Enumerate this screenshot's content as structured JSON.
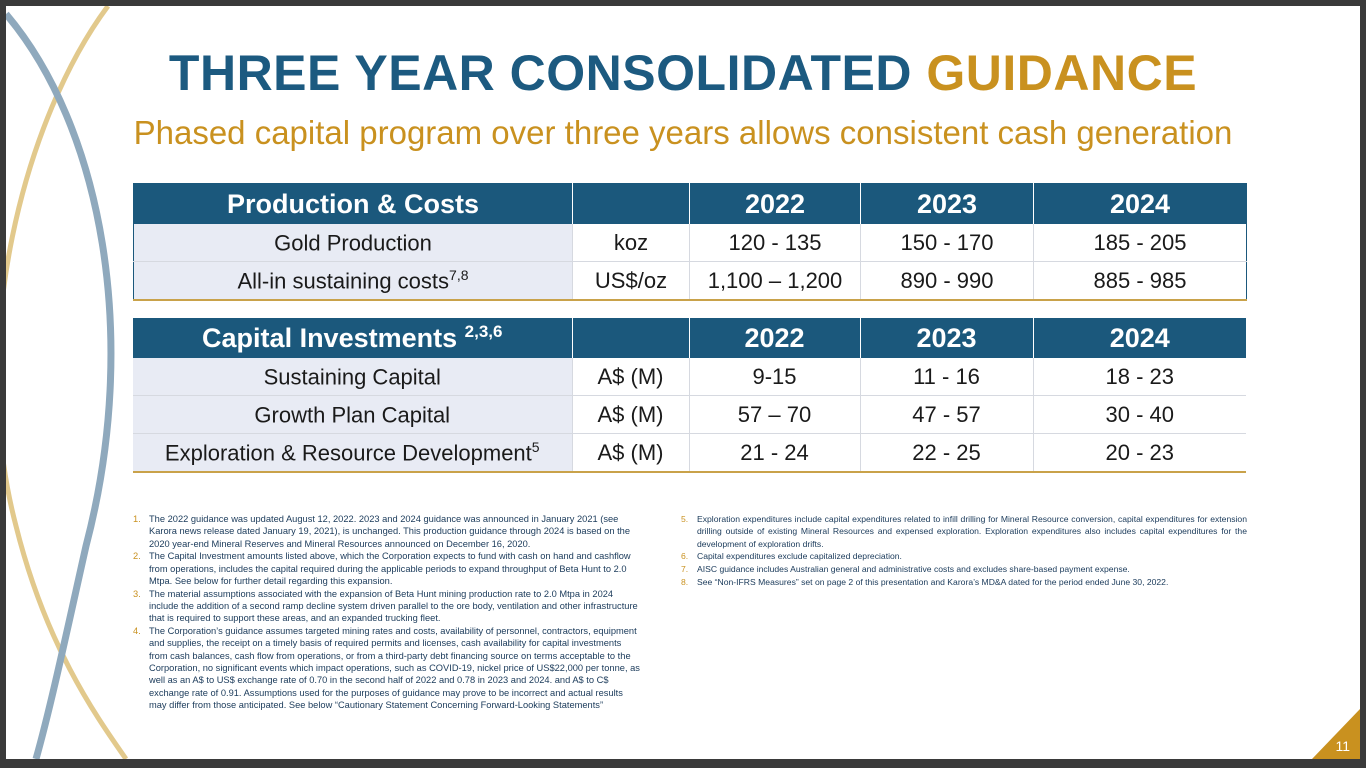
{
  "title": {
    "main": "THREE YEAR CONSOLIDATED",
    "accent": "GUIDANCE"
  },
  "subtitle": "Phased capital program over three years allows consistent cash generation",
  "colors": {
    "navy": "#1b587c",
    "gold": "#c9911f",
    "row_shade": "#e8ebf4"
  },
  "production_table": {
    "header": {
      "label": "Production & Costs",
      "unit": "",
      "years": [
        "2022",
        "2023",
        "2024"
      ]
    },
    "rows": [
      {
        "label": "Gold Production",
        "sup": "",
        "unit": "koz",
        "values": [
          "120 - 135",
          "150 - 170",
          "185 - 205"
        ]
      },
      {
        "label": "All-in sustaining costs",
        "sup": "7,8",
        "unit": "US$/oz",
        "values": [
          "1,100 – 1,200",
          "890 - 990",
          "885 - 985"
        ]
      }
    ]
  },
  "capital_table": {
    "header": {
      "label": "Capital Investments",
      "sup": "2,3,6",
      "unit": "",
      "years": [
        "2022",
        "2023",
        "2024"
      ]
    },
    "rows": [
      {
        "label": "Sustaining Capital",
        "sup": "",
        "unit": "A$ (M)",
        "values": [
          "9-15",
          "11 - 16",
          "18 - 23"
        ]
      },
      {
        "label": "Growth Plan Capital",
        "sup": "",
        "unit": "A$ (M)",
        "values": [
          "57 – 70",
          "47 - 57",
          "30 - 40"
        ]
      },
      {
        "label": "Exploration & Resource Development",
        "sup": "5",
        "unit": "A$ (M)",
        "values": [
          "21 - 24",
          "22 - 25",
          "20 - 23"
        ]
      }
    ]
  },
  "footnotes_left": [
    {
      "num": "1.",
      "text": "The 2022 guidance was updated August 12, 2022. 2023 and 2024 guidance was announced in January 2021 (see Karora news release dated January 19, 2021), is unchanged. This production guidance through 2024 is based on the 2020 year-end Mineral Reserves and Mineral Resources announced on December 16, 2020."
    },
    {
      "num": "2.",
      "text": "The Capital Investment amounts listed above, which the Corporation expects to fund with cash on hand and cashflow from operations, includes the capital required during the applicable periods to expand throughput of Beta Hunt to 2.0 Mtpa. See below for further detail regarding this expansion."
    },
    {
      "num": "3.",
      "text": "The material assumptions associated with the expansion of Beta Hunt mining production rate to 2.0 Mtpa in 2024 include the addition of a second ramp decline system driven parallel to the ore body, ventilation and other infrastructure that is required to support these areas, and an expanded trucking fleet."
    },
    {
      "num": "4.",
      "text": "The Corporation’s guidance assumes targeted mining rates and costs, availability of personnel, contractors, equipment and supplies, the receipt on a timely basis of required permits and licenses, cash availability for capital investments from cash balances, cash flow from operations, or from a third-party debt financing source on terms acceptable to the Corporation, no significant events which impact operations, such as COVID-19, nickel price of US$22,000 per tonne, as well as an A$ to US$ exchange rate of 0.70 in the second half of 2022 and 0.78 in 2023 and 2024. and A$ to C$ exchange rate of 0.91. Assumptions used for the purposes of guidance may prove to be incorrect and actual results may differ from those anticipated. See below “Cautionary Statement Concerning Forward-Looking Statements”"
    }
  ],
  "footnotes_right": [
    {
      "num": "5.",
      "text": "Exploration expenditures include capital expenditures related to infill drilling for Mineral Resource conversion, capital expenditures for extension drilling outside of existing Mineral Resources and expensed exploration. Exploration expenditures also includes capital expenditures for the development of exploration drifts."
    },
    {
      "num": "6.",
      "text": "Capital expenditures exclude capitalized depreciation."
    },
    {
      "num": "7.",
      "text": " AISC guidance includes Australian general and administrative costs and excludes share-based payment expense."
    },
    {
      "num": "8.",
      "text": "See “Non-IFRS Measures” set on page 2 of this presentation and Karora’s MD&A dated for the period ended June 30, 2022."
    }
  ],
  "page_number": "11"
}
